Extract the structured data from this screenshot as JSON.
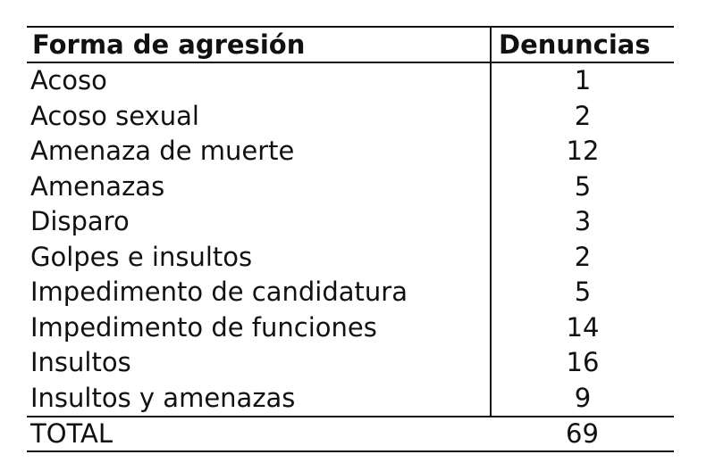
{
  "table": {
    "headers": [
      "Forma de agresión",
      "Denuncias"
    ],
    "rows": [
      {
        "name": "Acoso",
        "count": "1"
      },
      {
        "name": "Acoso sexual",
        "count": "2"
      },
      {
        "name": "Amenaza de muerte",
        "count": "12"
      },
      {
        "name": "Amenazas",
        "count": "5"
      },
      {
        "name": "Disparo",
        "count": "3"
      },
      {
        "name": "Golpes e insultos",
        "count": "2"
      },
      {
        "name": "Impedimento de candidatura",
        "count": "5"
      },
      {
        "name": "Impedimento de funciones",
        "count": "14"
      },
      {
        "name": "Insultos",
        "count": "16"
      },
      {
        "name": "Insultos y amenazas",
        "count": "9"
      }
    ],
    "total": {
      "label": "TOTAL",
      "count": "69"
    }
  }
}
